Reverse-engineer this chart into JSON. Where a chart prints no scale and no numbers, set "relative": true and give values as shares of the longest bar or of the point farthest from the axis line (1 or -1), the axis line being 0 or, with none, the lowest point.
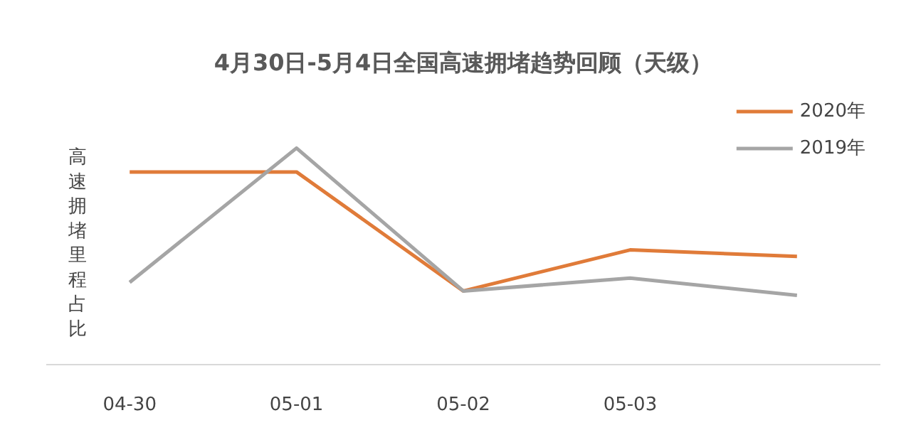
{
  "chart_data": {
    "type": "line",
    "title": "4月30日-5月4日全国高速拥堵趋势回顾（天级）",
    "ylabel": "高速拥堵里程占比",
    "relative": true,
    "categories": [
      "04-30",
      "05-01",
      "05-02",
      "05-03",
      null
    ],
    "series": [
      {
        "name": "2020年",
        "color": "#e07b39",
        "values": [
          0.89,
          0.89,
          0.34,
          0.53,
          0.5
        ]
      },
      {
        "name": "2019年",
        "color": "#a5a5a5",
        "values": [
          0.38,
          1.0,
          0.34,
          0.4,
          0.32
        ]
      }
    ],
    "legend": "top right",
    "grid": false,
    "marker": "none",
    "line_style": "solid"
  }
}
